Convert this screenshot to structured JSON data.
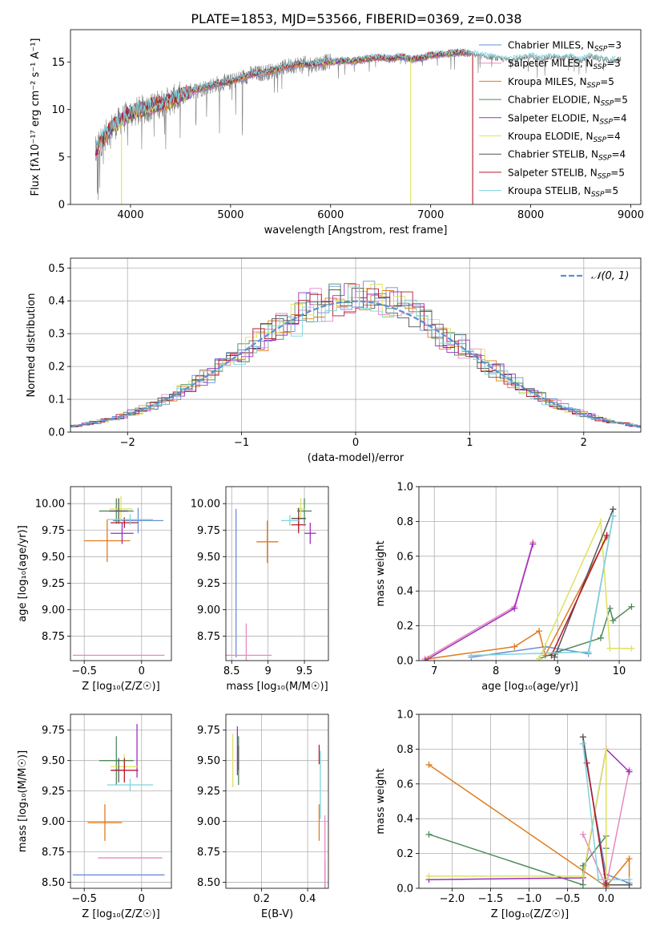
{
  "figure": {
    "title": "PLATE=1853, MJD=53566, FIBERID=0369, z=0.038"
  },
  "colors": {
    "Chabrier MILES": "#6b8fd6",
    "Salpeter MILES": "#e58ac2",
    "Kroupa MILES": "#e07b1f",
    "Chabrier ELODIE": "#4f8a5b",
    "Salpeter ELODIE": "#9b30c0",
    "Kroupa ELODIE": "#dde35e",
    "Chabrier STELIB": "#555555",
    "Salpeter STELIB": "#b51a2a",
    "Kroupa STELIB": "#7fd3dd",
    "data": "#7f7f7f",
    "gauss": "#5b8fd6",
    "grid": "#b0b0b0"
  },
  "chart_data": [
    {
      "id": "spectrum",
      "type": "line",
      "title": "PLATE=1853, MJD=53566, FIBERID=0369, z=0.038",
      "xlabel": "wavelength [Angstrom, rest frame]",
      "ylabel": "Flux [fλ10⁻¹⁷ erg cm⁻² s⁻¹ A⁻¹]",
      "xlim": [
        3400,
        9100
      ],
      "ylim": [
        0,
        18.4
      ],
      "xticks": [
        4000,
        5000,
        6000,
        7000,
        8000,
        9000
      ],
      "yticks": [
        0,
        5,
        10,
        15
      ],
      "grid": false,
      "legend_position": "top-right",
      "legend": [
        {
          "name": "Chabrier MILES",
          "nssp": "3"
        },
        {
          "name": "Salpeter MILES",
          "nssp": "3"
        },
        {
          "name": "Kroupa MILES",
          "nssp": "5"
        },
        {
          "name": "Chabrier ELODIE",
          "nssp": "5"
        },
        {
          "name": "Salpeter ELODIE",
          "nssp": "4"
        },
        {
          "name": "Kroupa ELODIE",
          "nssp": "4"
        },
        {
          "name": "Chabrier STELIB",
          "nssp": "4"
        },
        {
          "name": "Salpeter STELIB",
          "nssp": "5"
        },
        {
          "name": "Kroupa STELIB",
          "nssp": "5"
        }
      ],
      "data_continuum": {
        "x": [
          3650,
          3700,
          3800,
          3900,
          4000,
          4100,
          4200,
          4300,
          4400,
          4500,
          4600,
          4700,
          4800,
          4900,
          5000,
          5100,
          5200,
          5300,
          5400,
          5500,
          5600,
          5700,
          5800,
          5900,
          6000,
          6100,
          6200,
          6300,
          6400,
          6500,
          6600,
          6700,
          6800,
          6900,
          7000,
          7100,
          7200,
          7300,
          7400,
          7500,
          7600,
          7700,
          7800,
          7900,
          8000,
          8100,
          8200,
          8300,
          8400,
          8500,
          8600,
          8700,
          8800,
          8900
        ],
        "y": [
          5.5,
          6.5,
          8.0,
          8.8,
          9.6,
          9.9,
          10.3,
          10.6,
          10.9,
          11.4,
          11.9,
          12.2,
          12.5,
          12.8,
          12.9,
          13.3,
          13.7,
          13.8,
          14.0,
          14.3,
          14.6,
          14.8,
          14.7,
          14.9,
          15.0,
          15.1,
          15.1,
          15.2,
          15.4,
          15.5,
          15.3,
          15.6,
          15.3,
          15.4,
          15.7,
          15.8,
          15.9,
          16.0,
          15.9,
          15.6,
          15.5,
          15.3,
          15.2,
          15.4,
          15.6,
          15.3,
          15.5,
          15.4,
          15.5,
          15.1,
          15.6,
          15.3,
          15.1,
          15.3
        ]
      },
      "drops": [
        {
          "series": "Kroupa ELODIE",
          "x": 6800,
          "y": 0
        },
        {
          "series": "Salpeter STELIB",
          "x": 7420,
          "y": 0
        },
        {
          "series": "Kroupa ELODIE",
          "x": 3910,
          "y": 0
        }
      ]
    },
    {
      "id": "residuals",
      "type": "histogram",
      "xlabel": "(data-model)/error",
      "ylabel": "Normed distribution",
      "xlim": [
        -2.5,
        2.5
      ],
      "ylim": [
        0,
        0.53
      ],
      "xticks": [
        -2,
        -1,
        0,
        1,
        2
      ],
      "yticks": [
        0.0,
        0.1,
        0.2,
        0.3,
        0.4,
        0.5
      ],
      "grid": true,
      "legend_position": "top-right",
      "gauss_label": "𝒩(0, 1)",
      "bin_width": 0.1
    },
    {
      "id": "age-vs-z",
      "type": "errorbar",
      "xlabel": "Z [log₁₀(Z/Z☉)]",
      "ylabel": "age  [log₁₀(age/yr)]",
      "xlim": [
        -0.62,
        0.26
      ],
      "ylim": [
        8.52,
        10.16
      ],
      "xticks": [
        -0.5,
        0.0
      ],
      "yticks": [
        8.75,
        9.0,
        9.25,
        9.5,
        9.75,
        10.0
      ],
      "grid": true,
      "points": [
        {
          "series": "Chabrier MILES",
          "x": -0.03,
          "y": 9.84,
          "xerr": 0.22,
          "yerr": 0.12
        },
        {
          "series": "Salpeter MILES",
          "x": -0.2,
          "y": 8.57,
          "xerr": 0.4,
          "yerr": 0.0
        },
        {
          "series": "Kroupa MILES",
          "x": -0.3,
          "y": 9.65,
          "xerr": 0.2,
          "yerr": 0.2
        },
        {
          "series": "Chabrier ELODIE",
          "x": -0.22,
          "y": 9.93,
          "xerr": 0.15,
          "yerr": 0.12
        },
        {
          "series": "Salpeter ELODIE",
          "x": -0.17,
          "y": 9.72,
          "xerr": 0.1,
          "yerr": 0.1
        },
        {
          "series": "Kroupa ELODIE",
          "x": -0.18,
          "y": 9.95,
          "xerr": 0.1,
          "yerr": 0.12
        },
        {
          "series": "Chabrier STELIB",
          "x": -0.2,
          "y": 9.93,
          "xerr": 0.08,
          "yerr": 0.12
        },
        {
          "series": "Salpeter STELIB",
          "x": -0.15,
          "y": 9.82,
          "xerr": 0.12,
          "yerr": 0.05
        },
        {
          "series": "Kroupa STELIB",
          "x": -0.1,
          "y": 9.85,
          "xerr": 0.2,
          "yerr": 0.05
        }
      ]
    },
    {
      "id": "age-vs-mass",
      "type": "errorbar",
      "xlabel": "mass [log₁₀(M/M☉)]",
      "ylabel": "",
      "xlim": [
        8.42,
        9.83
      ],
      "ylim": [
        8.52,
        10.16
      ],
      "xticks": [
        8.5,
        9.0,
        9.5
      ],
      "yticks": [
        8.75,
        9.0,
        9.25,
        9.5,
        9.75,
        10.0
      ],
      "grid": true,
      "points": [
        {
          "series": "Chabrier MILES",
          "x": 8.56,
          "y": 9.25,
          "xerr": 0.0,
          "yerr": 0.7
        },
        {
          "series": "Salpeter MILES",
          "x": 8.7,
          "y": 8.57,
          "xerr": 0.35,
          "yerr": 0.3
        },
        {
          "series": "Kroupa MILES",
          "x": 8.99,
          "y": 9.64,
          "xerr": 0.15,
          "yerr": 0.2
        },
        {
          "series": "Chabrier ELODIE",
          "x": 9.5,
          "y": 9.93,
          "xerr": 0.1,
          "yerr": 0.12
        },
        {
          "series": "Salpeter ELODIE",
          "x": 9.58,
          "y": 9.72,
          "xerr": 0.08,
          "yerr": 0.1
        },
        {
          "series": "Kroupa ELODIE",
          "x": 9.45,
          "y": 9.95,
          "xerr": 0.06,
          "yerr": 0.1
        },
        {
          "series": "Chabrier STELIB",
          "x": 9.42,
          "y": 9.86,
          "xerr": 0.1,
          "yerr": 0.1
        },
        {
          "series": "Salpeter STELIB",
          "x": 9.42,
          "y": 9.8,
          "xerr": 0.1,
          "yerr": 0.08
        },
        {
          "series": "Kroupa STELIB",
          "x": 9.3,
          "y": 9.84,
          "xerr": 0.12,
          "yerr": 0.05
        }
      ]
    },
    {
      "id": "weight-vs-age",
      "type": "line",
      "xlabel": "age  [log₁₀(age/yr)]",
      "ylabel": "mass weight",
      "xlim": [
        6.75,
        10.35
      ],
      "ylim": [
        0,
        1.0
      ],
      "xticks": [
        7,
        8,
        9,
        10
      ],
      "yticks": [
        0.0,
        0.2,
        0.4,
        0.6,
        0.8,
        1.0
      ],
      "grid": true,
      "series": [
        {
          "series": "Chabrier MILES",
          "x": [
            7.6,
            8.8,
            9.5,
            9.9
          ],
          "y": [
            0.02,
            0.08,
            0.04,
            0.83
          ]
        },
        {
          "series": "Salpeter MILES",
          "x": [
            6.85,
            8.3,
            8.6
          ],
          "y": [
            0.01,
            0.31,
            0.68
          ]
        },
        {
          "series": "Kroupa MILES",
          "x": [
            6.9,
            8.3,
            8.7,
            8.8,
            9.8
          ],
          "y": [
            0.01,
            0.08,
            0.17,
            0.03,
            0.71
          ]
        },
        {
          "series": "Chabrier ELODIE",
          "x": [
            8.7,
            9.0,
            9.7,
            9.85,
            9.9,
            10.2
          ],
          "y": [
            0.01,
            0.05,
            0.13,
            0.3,
            0.23,
            0.31
          ]
        },
        {
          "series": "Salpeter ELODIE",
          "x": [
            6.85,
            8.3,
            8.6
          ],
          "y": [
            0.0,
            0.3,
            0.67
          ]
        },
        {
          "series": "Kroupa ELODIE",
          "x": [
            8.7,
            9.7,
            9.85,
            10.2
          ],
          "y": [
            0.01,
            0.8,
            0.07,
            0.07
          ]
        },
        {
          "series": "Chabrier STELIB",
          "x": [
            8.95,
            9.9
          ],
          "y": [
            0.02,
            0.87
          ]
        },
        {
          "series": "Salpeter STELIB",
          "x": [
            8.9,
            9.8
          ],
          "y": [
            0.03,
            0.72
          ]
        },
        {
          "series": "Kroupa STELIB",
          "x": [
            7.6,
            9.5,
            9.9
          ],
          "y": [
            0.03,
            0.05,
            0.83
          ]
        }
      ]
    },
    {
      "id": "mass-vs-z",
      "type": "errorbar",
      "xlabel": "Z [log₁₀(Z/Z☉)]",
      "ylabel": "mass [log₁₀(M/M☉)]",
      "xlim": [
        -0.62,
        0.26
      ],
      "ylim": [
        8.45,
        9.88
      ],
      "xticks": [
        -0.5,
        0.0
      ],
      "yticks": [
        8.5,
        8.75,
        9.0,
        9.25,
        9.5,
        9.75
      ],
      "grid": true,
      "points": [
        {
          "series": "Chabrier MILES",
          "x": -0.2,
          "y": 8.56,
          "xerr": 0.4,
          "yerr": 0.0
        },
        {
          "series": "Salpeter MILES",
          "x": -0.1,
          "y": 8.7,
          "xerr": 0.28,
          "yerr": 0.0
        },
        {
          "series": "Kroupa MILES",
          "x": -0.32,
          "y": 8.99,
          "xerr": 0.15,
          "yerr": 0.15
        },
        {
          "series": "Chabrier ELODIE",
          "x": -0.22,
          "y": 9.5,
          "xerr": 0.15,
          "yerr": 0.2
        },
        {
          "series": "Salpeter ELODIE",
          "x": -0.04,
          "y": 9.58,
          "xerr": 0.0,
          "yerr": 0.22
        },
        {
          "series": "Kroupa ELODIE",
          "x": -0.15,
          "y": 9.45,
          "xerr": 0.12,
          "yerr": 0.1
        },
        {
          "series": "Chabrier STELIB",
          "x": -0.2,
          "y": 9.42,
          "xerr": 0.05,
          "yerr": 0.1
        },
        {
          "series": "Salpeter STELIB",
          "x": -0.15,
          "y": 9.42,
          "xerr": 0.12,
          "yerr": 0.1
        },
        {
          "series": "Kroupa STELIB",
          "x": -0.1,
          "y": 9.3,
          "xerr": 0.2,
          "yerr": 0.05
        }
      ]
    },
    {
      "id": "mass-vs-ebv",
      "type": "errorbar",
      "xlabel": "E(B-V)",
      "ylabel": "",
      "xlim": [
        0.045,
        0.49
      ],
      "ylim": [
        8.45,
        9.88
      ],
      "xticks": [
        0.2,
        0.4
      ],
      "yticks": [
        8.5,
        8.75,
        9.0,
        9.25,
        9.5,
        9.75
      ],
      "grid": true,
      "points": [
        {
          "series": "Chabrier MILES",
          "x": 0.475,
          "y": 8.56,
          "xerr": 0.0,
          "yerr": 0.12
        },
        {
          "series": "Salpeter MILES",
          "x": 0.475,
          "y": 8.75,
          "xerr": 0.0,
          "yerr": 0.3
        },
        {
          "series": "Kroupa MILES",
          "x": 0.45,
          "y": 8.99,
          "xerr": 0.0,
          "yerr": 0.15
        },
        {
          "series": "Chabrier ELODIE",
          "x": 0.1,
          "y": 9.5,
          "xerr": 0.0,
          "yerr": 0.2
        },
        {
          "series": "Salpeter ELODIE",
          "x": 0.095,
          "y": 9.58,
          "xerr": 0.0,
          "yerr": 0.2
        },
        {
          "series": "Kroupa ELODIE",
          "x": 0.075,
          "y": 9.5,
          "xerr": 0.0,
          "yerr": 0.22
        },
        {
          "series": "Chabrier STELIB",
          "x": 0.1,
          "y": 9.52,
          "xerr": 0.0,
          "yerr": 0.1
        },
        {
          "series": "Salpeter STELIB",
          "x": 0.45,
          "y": 9.55,
          "xerr": 0.0,
          "yerr": 0.08
        },
        {
          "series": "Kroupa STELIB",
          "x": 0.455,
          "y": 9.3,
          "xerr": 0.0,
          "yerr": 0.28
        }
      ]
    },
    {
      "id": "weight-vs-z",
      "type": "line",
      "xlabel": "Z [log₁₀(Z/Z☉)]",
      "ylabel": "mass weight",
      "xlim": [
        -2.43,
        0.45
      ],
      "ylim": [
        0,
        1.0
      ],
      "xticks": [
        -2.0,
        -1.5,
        -1.0,
        -0.5,
        0.0
      ],
      "yticks": [
        0.0,
        0.2,
        0.4,
        0.6,
        0.8,
        1.0
      ],
      "grid": true,
      "series": [
        {
          "series": "Chabrier MILES",
          "x": [
            -0.3,
            0.0,
            0.3
          ],
          "y": [
            0.83,
            0.08,
            0.03
          ]
        },
        {
          "series": "Salpeter MILES",
          "x": [
            -0.3,
            0.0,
            0.3
          ],
          "y": [
            0.31,
            0.01,
            0.68
          ]
        },
        {
          "series": "Kroupa MILES",
          "x": [
            -2.3,
            0.0,
            0.3,
            0.3
          ],
          "y": [
            0.71,
            0.01,
            0.17,
            0.02
          ]
        },
        {
          "series": "Chabrier ELODIE",
          "x": [
            -2.3,
            -0.3,
            -0.3,
            0.0,
            0.0
          ],
          "y": [
            0.31,
            0.02,
            0.13,
            0.3,
            0.23
          ]
        },
        {
          "series": "Salpeter ELODIE",
          "x": [
            -2.3,
            -0.3,
            0.0,
            0.3
          ],
          "y": [
            0.05,
            0.06,
            0.8,
            0.67
          ]
        },
        {
          "series": "Kroupa ELODIE",
          "x": [
            -2.3,
            -0.3,
            0.0,
            0.0
          ],
          "y": [
            0.07,
            0.07,
            0.8,
            0.06
          ]
        },
        {
          "series": "Chabrier STELIB",
          "x": [
            -0.3,
            0.0,
            0.3
          ],
          "y": [
            0.87,
            0.02,
            0.02
          ]
        },
        {
          "series": "Salpeter STELIB",
          "x": [
            -0.25,
            0.0
          ],
          "y": [
            0.72,
            0.03
          ]
        },
        {
          "series": "Kroupa STELIB",
          "x": [
            -0.3,
            -0.1,
            0.3
          ],
          "y": [
            0.83,
            0.05,
            0.05
          ]
        }
      ]
    }
  ]
}
